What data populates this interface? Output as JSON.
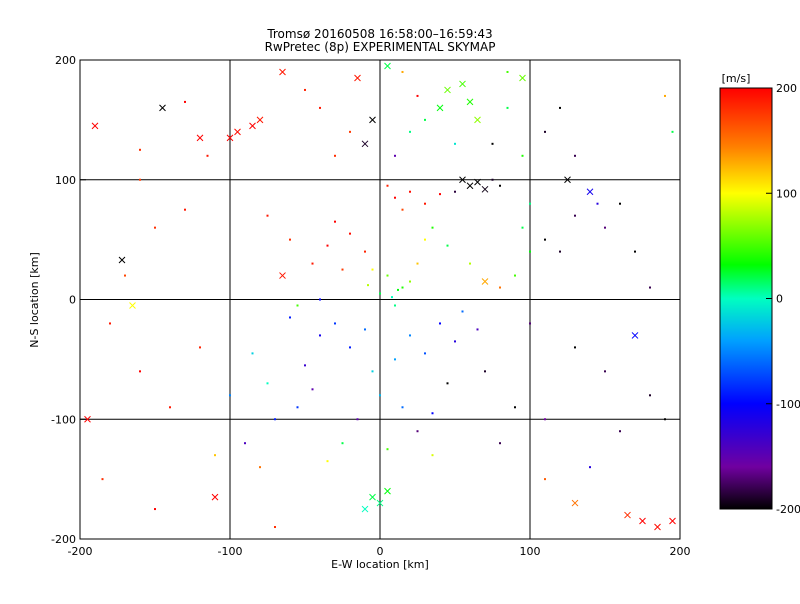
{
  "chart_data": {
    "type": "scatter",
    "title": "Tromsø 20160508 16:58:00–16:59:43",
    "subtitle": "RwPretec (8p) EXPERIMENTAL SKYMAP",
    "xlabel": "E-W location [km]",
    "ylabel": "N-S location [km]",
    "xlim": [
      -200,
      200
    ],
    "ylim": [
      -200,
      200
    ],
    "x_ticks": [
      -200,
      -100,
      0,
      100,
      200
    ],
    "y_ticks": [
      -200,
      -100,
      0,
      100,
      200
    ],
    "x_tick_labels": [
      "-200",
      "-100",
      "0",
      "100",
      "200"
    ],
    "y_tick_labels": [
      "-200",
      "-100",
      "0",
      "100",
      "200"
    ],
    "grid": true,
    "colorbar": {
      "label": "[m/s]",
      "range": [
        -200,
        200
      ],
      "ticks": [
        200,
        100,
        0,
        -100,
        -200
      ],
      "tick_labels": [
        "200",
        "100",
        "0",
        "-100",
        "-200"
      ],
      "colormap": [
        "#000000",
        "#7000a0",
        "#0000ff",
        "#00a0ff",
        "#00ffc0",
        "#00ff00",
        "#ffff00",
        "#ff8000",
        "#ff0000"
      ]
    },
    "markers": [
      "dot",
      "cross"
    ],
    "series": [
      {
        "x": -35,
        "y": 45,
        "v": 200,
        "marker": "dot"
      },
      {
        "x": -20,
        "y": 55,
        "v": 195,
        "marker": "dot"
      },
      {
        "x": -45,
        "y": 30,
        "v": 190,
        "marker": "dot"
      },
      {
        "x": -10,
        "y": 40,
        "v": 185,
        "marker": "dot"
      },
      {
        "x": -30,
        "y": 65,
        "v": 200,
        "marker": "dot"
      },
      {
        "x": -60,
        "y": 50,
        "v": 180,
        "marker": "dot"
      },
      {
        "x": -75,
        "y": 70,
        "v": 190,
        "marker": "dot"
      },
      {
        "x": -25,
        "y": 25,
        "v": 175,
        "marker": "dot"
      },
      {
        "x": 10,
        "y": 85,
        "v": 200,
        "marker": "dot"
      },
      {
        "x": 20,
        "y": 90,
        "v": 195,
        "marker": "dot"
      },
      {
        "x": 30,
        "y": 80,
        "v": 190,
        "marker": "dot"
      },
      {
        "x": 5,
        "y": 95,
        "v": 185,
        "marker": "dot"
      },
      {
        "x": 40,
        "y": 88,
        "v": 200,
        "marker": "dot"
      },
      {
        "x": 15,
        "y": 75,
        "v": 170,
        "marker": "dot"
      },
      {
        "x": -85,
        "y": 145,
        "v": 200,
        "marker": "cross"
      },
      {
        "x": -95,
        "y": 140,
        "v": 195,
        "marker": "cross"
      },
      {
        "x": -80,
        "y": 150,
        "v": 190,
        "marker": "cross"
      },
      {
        "x": -100,
        "y": 135,
        "v": 200,
        "marker": "cross"
      },
      {
        "x": -50,
        "y": 175,
        "v": 185,
        "marker": "dot"
      },
      {
        "x": -40,
        "y": 160,
        "v": 190,
        "marker": "dot"
      },
      {
        "x": -130,
        "y": 75,
        "v": 190,
        "marker": "dot"
      },
      {
        "x": -150,
        "y": 60,
        "v": 180,
        "marker": "dot"
      },
      {
        "x": -160,
        "y": 100,
        "v": 175,
        "marker": "dot"
      },
      {
        "x": -170,
        "y": 20,
        "v": 170,
        "marker": "dot"
      },
      {
        "x": -180,
        "y": -20,
        "v": 190,
        "marker": "dot"
      },
      {
        "x": -160,
        "y": -60,
        "v": 200,
        "marker": "dot"
      },
      {
        "x": -185,
        "y": -150,
        "v": 180,
        "marker": "dot"
      },
      {
        "x": -120,
        "y": -40,
        "v": 185,
        "marker": "dot"
      },
      {
        "x": 5,
        "y": 20,
        "v": 60,
        "marker": "dot"
      },
      {
        "x": 15,
        "y": 10,
        "v": 40,
        "marker": "dot"
      },
      {
        "x": 0,
        "y": 5,
        "v": 20,
        "marker": "dot"
      },
      {
        "x": 10,
        "y": -5,
        "v": 10,
        "marker": "dot"
      },
      {
        "x": 20,
        "y": 15,
        "v": 70,
        "marker": "dot"
      },
      {
        "x": -5,
        "y": 25,
        "v": 100,
        "marker": "dot"
      },
      {
        "x": 25,
        "y": 30,
        "v": 120,
        "marker": "dot"
      },
      {
        "x": 8,
        "y": 2,
        "v": 0,
        "marker": "dot"
      },
      {
        "x": 12,
        "y": 8,
        "v": 30,
        "marker": "dot"
      },
      {
        "x": -8,
        "y": 12,
        "v": 80,
        "marker": "dot"
      },
      {
        "x": -30,
        "y": -20,
        "v": -80,
        "marker": "dot"
      },
      {
        "x": -40,
        "y": -30,
        "v": -110,
        "marker": "dot"
      },
      {
        "x": -20,
        "y": -40,
        "v": -90,
        "marker": "dot"
      },
      {
        "x": -10,
        "y": -25,
        "v": -60,
        "marker": "dot"
      },
      {
        "x": 20,
        "y": -30,
        "v": -50,
        "marker": "dot"
      },
      {
        "x": 30,
        "y": -45,
        "v": -70,
        "marker": "dot"
      },
      {
        "x": 10,
        "y": -50,
        "v": -40,
        "marker": "dot"
      },
      {
        "x": -5,
        "y": -60,
        "v": -20,
        "marker": "dot"
      },
      {
        "x": 40,
        "y": -20,
        "v": -100,
        "marker": "dot"
      },
      {
        "x": 50,
        "y": -35,
        "v": -120,
        "marker": "dot"
      },
      {
        "x": -50,
        "y": -55,
        "v": -130,
        "marker": "dot"
      },
      {
        "x": -60,
        "y": -15,
        "v": -90,
        "marker": "dot"
      },
      {
        "x": 0,
        "y": -80,
        "v": -30,
        "marker": "dot"
      },
      {
        "x": 15,
        "y": -90,
        "v": -60,
        "marker": "dot"
      },
      {
        "x": -15,
        "y": -100,
        "v": -150,
        "marker": "dot"
      },
      {
        "x": 25,
        "y": -110,
        "v": -170,
        "marker": "dot"
      },
      {
        "x": -25,
        "y": -120,
        "v": 20,
        "marker": "dot"
      },
      {
        "x": 5,
        "y": -125,
        "v": 50,
        "marker": "dot"
      },
      {
        "x": 35,
        "y": -130,
        "v": 90,
        "marker": "dot"
      },
      {
        "x": -35,
        "y": -135,
        "v": 100,
        "marker": "dot"
      },
      {
        "x": -5,
        "y": -165,
        "v": 20,
        "marker": "cross"
      },
      {
        "x": 0,
        "y": -170,
        "v": 10,
        "marker": "cross"
      },
      {
        "x": 5,
        "y": -160,
        "v": 30,
        "marker": "cross"
      },
      {
        "x": -10,
        "y": -175,
        "v": 0,
        "marker": "cross"
      },
      {
        "x": 60,
        "y": 95,
        "v": -200,
        "marker": "cross"
      },
      {
        "x": 65,
        "y": 98,
        "v": -200,
        "marker": "cross"
      },
      {
        "x": 70,
        "y": 92,
        "v": -195,
        "marker": "cross"
      },
      {
        "x": 55,
        "y": 100,
        "v": -200,
        "marker": "cross"
      },
      {
        "x": 75,
        "y": 100,
        "v": -190,
        "marker": "dot"
      },
      {
        "x": 50,
        "y": 90,
        "v": -185,
        "marker": "dot"
      },
      {
        "x": 80,
        "y": 95,
        "v": -200,
        "marker": "dot"
      },
      {
        "x": 45,
        "y": 175,
        "v": 60,
        "marker": "cross"
      },
      {
        "x": 55,
        "y": 180,
        "v": 50,
        "marker": "cross"
      },
      {
        "x": 60,
        "y": 165,
        "v": 40,
        "marker": "cross"
      },
      {
        "x": 40,
        "y": 160,
        "v": 30,
        "marker": "cross"
      },
      {
        "x": 65,
        "y": 150,
        "v": 70,
        "marker": "cross"
      },
      {
        "x": 30,
        "y": 150,
        "v": 20,
        "marker": "dot"
      },
      {
        "x": 20,
        "y": 140,
        "v": 10,
        "marker": "dot"
      },
      {
        "x": 50,
        "y": 130,
        "v": -10,
        "marker": "dot"
      },
      {
        "x": 85,
        "y": 190,
        "v": 50,
        "marker": "dot"
      },
      {
        "x": 95,
        "y": 185,
        "v": 60,
        "marker": "cross"
      },
      {
        "x": 100,
        "y": 40,
        "v": 30,
        "marker": "dot"
      },
      {
        "x": 90,
        "y": 20,
        "v": 50,
        "marker": "dot"
      },
      {
        "x": 95,
        "y": 60,
        "v": 20,
        "marker": "dot"
      },
      {
        "x": 100,
        "y": 80,
        "v": 10,
        "marker": "dot"
      },
      {
        "x": 110,
        "y": 50,
        "v": -200,
        "marker": "dot"
      },
      {
        "x": 120,
        "y": 40,
        "v": -190,
        "marker": "dot"
      },
      {
        "x": 130,
        "y": 70,
        "v": -180,
        "marker": "dot"
      },
      {
        "x": 150,
        "y": 60,
        "v": -170,
        "marker": "dot"
      },
      {
        "x": 160,
        "y": 80,
        "v": -200,
        "marker": "dot"
      },
      {
        "x": 140,
        "y": 90,
        "v": -110,
        "marker": "cross"
      },
      {
        "x": 170,
        "y": 40,
        "v": -200,
        "marker": "dot"
      },
      {
        "x": 180,
        "y": 10,
        "v": -180,
        "marker": "dot"
      },
      {
        "x": 130,
        "y": -40,
        "v": -200,
        "marker": "dot"
      },
      {
        "x": 150,
        "y": -60,
        "v": -180,
        "marker": "dot"
      },
      {
        "x": 170,
        "y": -30,
        "v": -100,
        "marker": "cross"
      },
      {
        "x": 180,
        "y": -80,
        "v": -190,
        "marker": "dot"
      },
      {
        "x": 190,
        "y": -100,
        "v": -200,
        "marker": "dot"
      },
      {
        "x": 160,
        "y": -110,
        "v": -180,
        "marker": "dot"
      },
      {
        "x": 140,
        "y": -140,
        "v": -120,
        "marker": "dot"
      },
      {
        "x": 175,
        "y": -185,
        "v": 200,
        "marker": "cross"
      },
      {
        "x": 185,
        "y": -190,
        "v": 195,
        "marker": "cross"
      },
      {
        "x": 195,
        "y": -185,
        "v": 200,
        "marker": "cross"
      },
      {
        "x": 165,
        "y": -180,
        "v": 180,
        "marker": "cross"
      },
      {
        "x": 130,
        "y": -170,
        "v": 150,
        "marker": "cross"
      },
      {
        "x": 110,
        "y": -150,
        "v": 160,
        "marker": "dot"
      },
      {
        "x": 80,
        "y": -120,
        "v": -180,
        "marker": "dot"
      },
      {
        "x": 90,
        "y": -90,
        "v": -200,
        "marker": "dot"
      },
      {
        "x": 70,
        "y": -60,
        "v": -190,
        "marker": "dot"
      },
      {
        "x": 100,
        "y": -20,
        "v": -170,
        "marker": "dot"
      },
      {
        "x": 110,
        "y": -100,
        "v": -160,
        "marker": "dot"
      },
      {
        "x": -90,
        "y": -120,
        "v": -140,
        "marker": "dot"
      },
      {
        "x": -70,
        "y": -100,
        "v": -90,
        "marker": "dot"
      },
      {
        "x": -100,
        "y": -80,
        "v": -50,
        "marker": "dot"
      },
      {
        "x": -80,
        "y": -140,
        "v": 150,
        "marker": "dot"
      },
      {
        "x": -110,
        "y": -130,
        "v": 120,
        "marker": "dot"
      },
      {
        "x": -140,
        "y": -90,
        "v": 190,
        "marker": "dot"
      },
      {
        "x": -145,
        "y": 160,
        "v": -200,
        "marker": "cross"
      },
      {
        "x": -172,
        "y": 33,
        "v": -200,
        "marker": "cross"
      },
      {
        "x": -165,
        "y": -5,
        "v": 100,
        "marker": "cross"
      },
      {
        "x": -120,
        "y": 135,
        "v": 200,
        "marker": "cross"
      },
      {
        "x": -65,
        "y": 190,
        "v": 190,
        "marker": "cross"
      },
      {
        "x": -30,
        "y": 120,
        "v": 180,
        "marker": "dot"
      },
      {
        "x": -20,
        "y": 140,
        "v": 175,
        "marker": "dot"
      },
      {
        "x": -5,
        "y": 150,
        "v": -200,
        "marker": "cross"
      },
      {
        "x": -10,
        "y": 130,
        "v": -190,
        "marker": "cross"
      },
      {
        "x": 10,
        "y": 120,
        "v": -150,
        "marker": "dot"
      },
      {
        "x": 120,
        "y": 160,
        "v": -200,
        "marker": "dot"
      },
      {
        "x": 110,
        "y": 140,
        "v": -190,
        "marker": "dot"
      },
      {
        "x": 130,
        "y": 120,
        "v": -180,
        "marker": "dot"
      },
      {
        "x": 125,
        "y": 100,
        "v": -200,
        "marker": "cross"
      },
      {
        "x": 145,
        "y": 80,
        "v": -120,
        "marker": "dot"
      },
      {
        "x": 190,
        "y": 170,
        "v": 130,
        "marker": "dot"
      },
      {
        "x": 195,
        "y": 140,
        "v": 20,
        "marker": "dot"
      },
      {
        "x": -40,
        "y": 0,
        "v": -100,
        "marker": "dot"
      },
      {
        "x": -55,
        "y": -5,
        "v": 50,
        "marker": "dot"
      },
      {
        "x": -65,
        "y": 20,
        "v": 190,
        "marker": "cross"
      },
      {
        "x": 30,
        "y": 50,
        "v": 100,
        "marker": "dot"
      },
      {
        "x": 35,
        "y": 60,
        "v": 40,
        "marker": "dot"
      },
      {
        "x": 45,
        "y": 45,
        "v": 20,
        "marker": "dot"
      },
      {
        "x": 60,
        "y": 30,
        "v": 80,
        "marker": "dot"
      },
      {
        "x": 70,
        "y": 15,
        "v": 130,
        "marker": "cross"
      },
      {
        "x": 80,
        "y": 10,
        "v": 150,
        "marker": "dot"
      },
      {
        "x": 55,
        "y": -10,
        "v": -60,
        "marker": "dot"
      },
      {
        "x": 65,
        "y": -25,
        "v": -140,
        "marker": "dot"
      },
      {
        "x": 45,
        "y": -70,
        "v": -200,
        "marker": "dot"
      },
      {
        "x": 35,
        "y": -95,
        "v": -100,
        "marker": "dot"
      },
      {
        "x": -45,
        "y": -75,
        "v": -150,
        "marker": "dot"
      },
      {
        "x": -55,
        "y": -90,
        "v": -80,
        "marker": "dot"
      },
      {
        "x": -75,
        "y": -70,
        "v": 0,
        "marker": "dot"
      },
      {
        "x": -85,
        "y": -45,
        "v": -20,
        "marker": "dot"
      },
      {
        "x": -130,
        "y": 165,
        "v": 200,
        "marker": "dot"
      },
      {
        "x": -115,
        "y": 120,
        "v": 190,
        "marker": "dot"
      },
      {
        "x": 25,
        "y": 170,
        "v": 200,
        "marker": "dot"
      },
      {
        "x": 15,
        "y": 190,
        "v": 130,
        "marker": "dot"
      },
      {
        "x": 5,
        "y": 195,
        "v": 20,
        "marker": "cross"
      },
      {
        "x": -15,
        "y": 185,
        "v": 190,
        "marker": "cross"
      },
      {
        "x": 85,
        "y": 160,
        "v": 20,
        "marker": "dot"
      },
      {
        "x": 95,
        "y": 120,
        "v": 40,
        "marker": "dot"
      },
      {
        "x": 75,
        "y": 130,
        "v": -200,
        "marker": "dot"
      },
      {
        "x": -190,
        "y": 145,
        "v": 200,
        "marker": "cross"
      },
      {
        "x": -160,
        "y": 125,
        "v": 180,
        "marker": "dot"
      },
      {
        "x": -195,
        "y": -100,
        "v": 200,
        "marker": "cross"
      },
      {
        "x": -150,
        "y": -175,
        "v": 200,
        "marker": "dot"
      },
      {
        "x": -110,
        "y": -165,
        "v": 200,
        "marker": "cross"
      },
      {
        "x": -70,
        "y": -190,
        "v": 180,
        "marker": "dot"
      }
    ]
  }
}
